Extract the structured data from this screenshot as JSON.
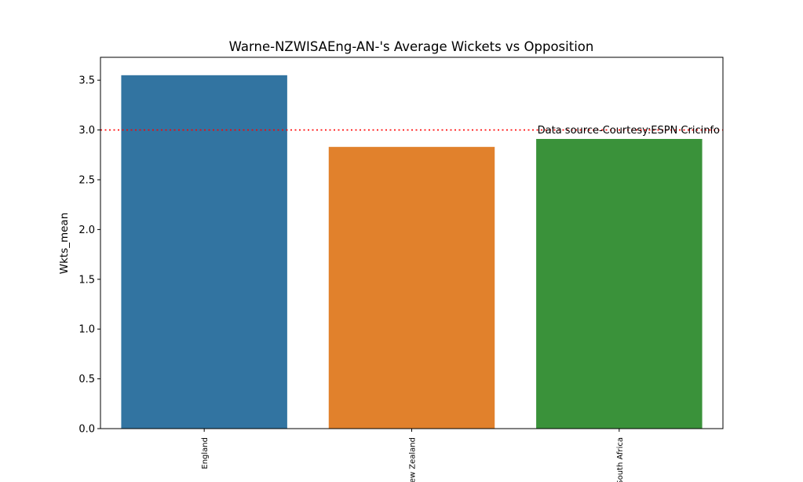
{
  "chart_data": {
    "type": "bar",
    "title": "Warne-NZWISAEng-AN-'s Average Wickets vs Opposition",
    "xlabel": "",
    "ylabel": "Wkts_mean",
    "categories": [
      "England",
      "New Zealand",
      "South Africa"
    ],
    "values": [
      3.55,
      2.83,
      2.91
    ],
    "colors": [
      "#3274a1",
      "#e1812c",
      "#3a923a"
    ],
    "ylim": [
      0,
      3.73
    ],
    "yticks": [
      "0.0",
      "0.5",
      "1.0",
      "1.5",
      "2.0",
      "2.5",
      "3.0",
      "3.5"
    ],
    "reference_line": {
      "y": 3.0,
      "color": "#ff0000",
      "style": "dotted"
    },
    "annotation": "Data source-Courtesy:ESPN Cricinfo",
    "grid": false
  }
}
